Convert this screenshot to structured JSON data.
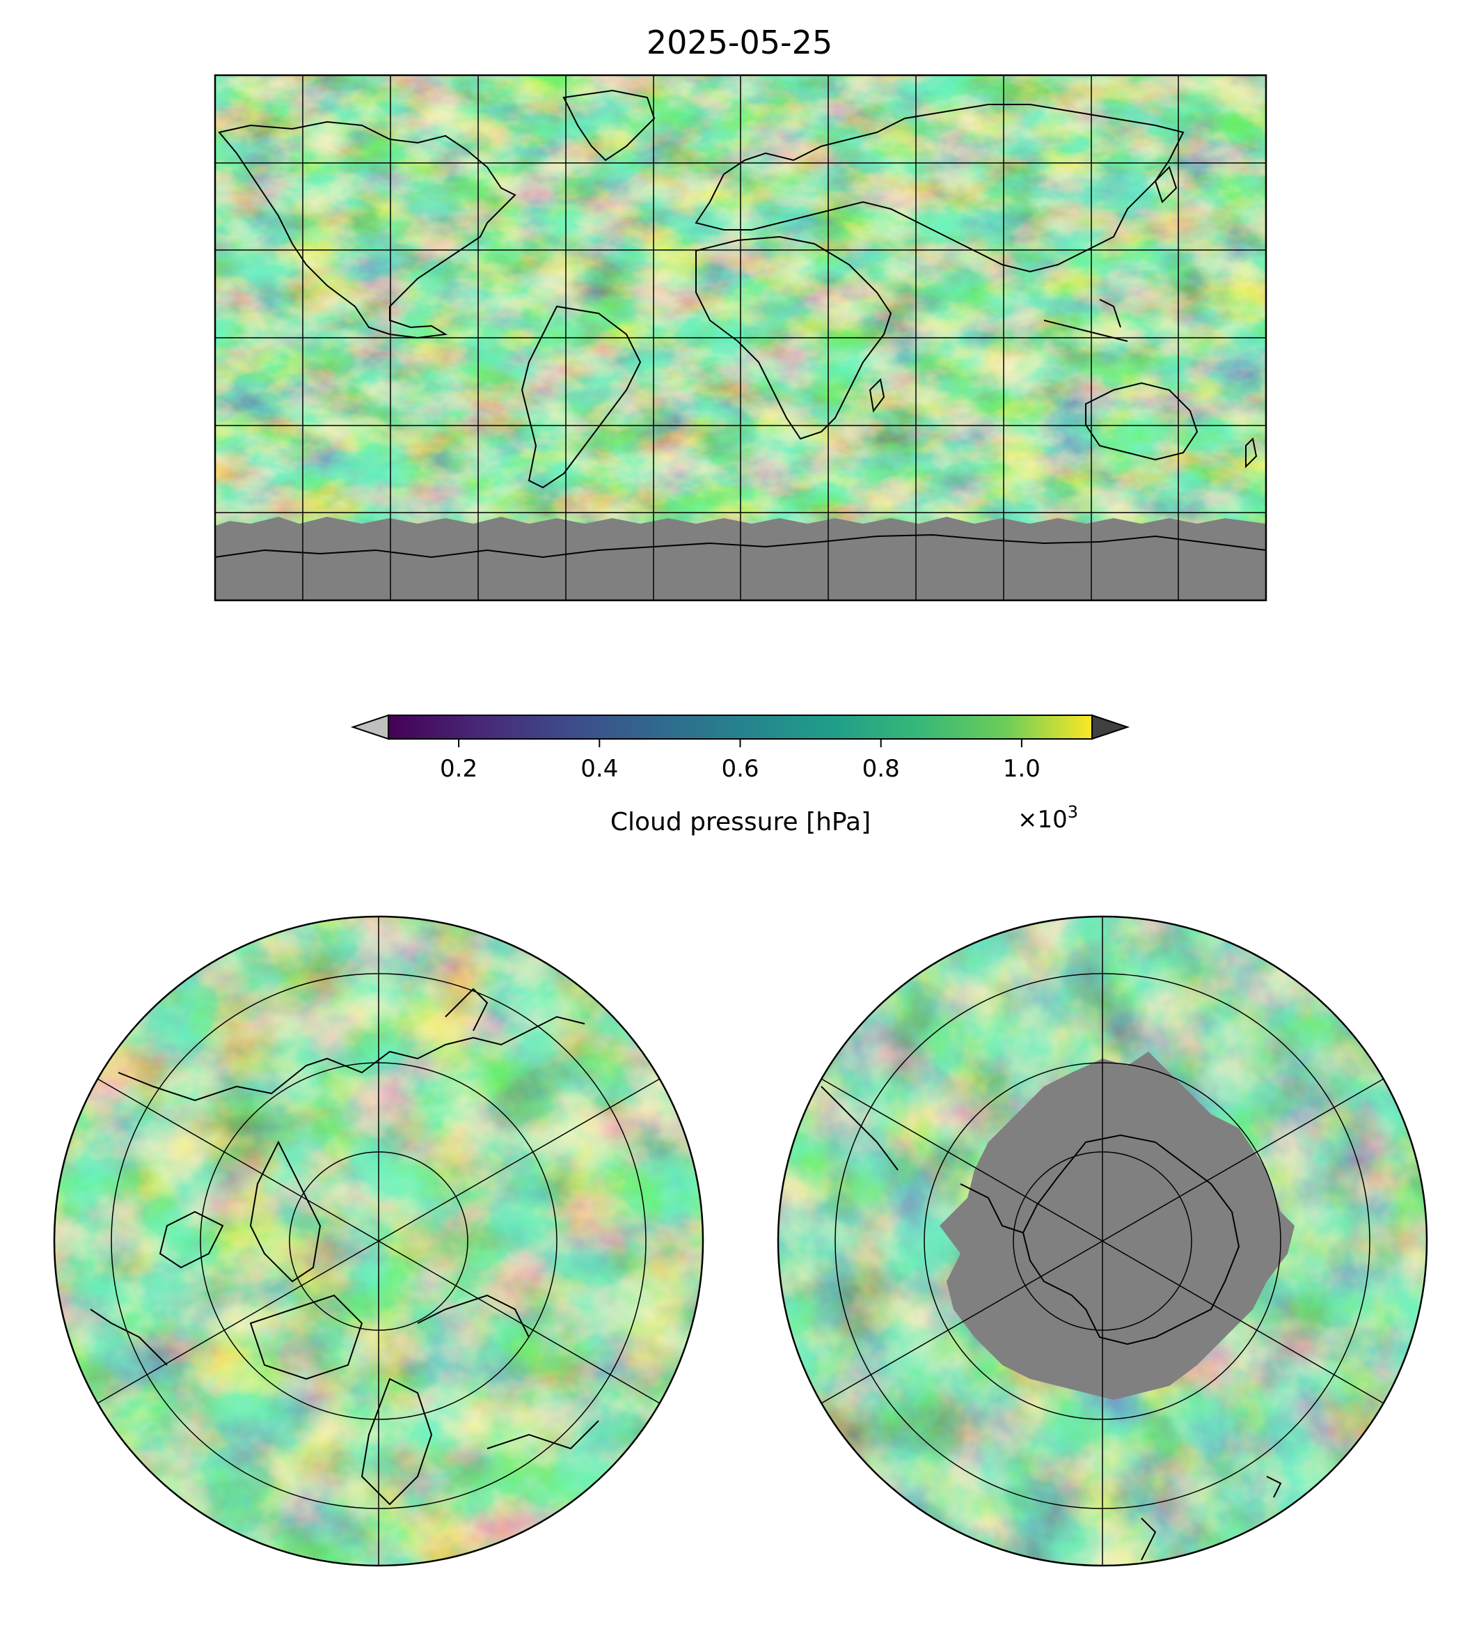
{
  "figure": {
    "title": "2025-05-25"
  },
  "colorbar": {
    "label": "Cloud pressure [hPa]",
    "multiplier_base": "×10",
    "multiplier_exp": "3",
    "ticks": [
      "0.2",
      "0.4",
      "0.6",
      "0.8",
      "1.0"
    ],
    "tick_values": [
      0.2,
      0.4,
      0.6,
      0.8,
      1.0
    ],
    "range": [
      0.1,
      1.1
    ],
    "under_color": "#c0c0c0",
    "over_color": "#404040",
    "colormap": "viridis"
  },
  "maps": {
    "colors": {
      "missing": "#808080",
      "coastline": "#000000",
      "gridline": "#000000"
    },
    "global": {
      "projection": "plate-carree"
    },
    "north_polar": {
      "projection": "north-polar-stereographic"
    },
    "south_polar": {
      "projection": "south-polar-stereographic"
    }
  }
}
